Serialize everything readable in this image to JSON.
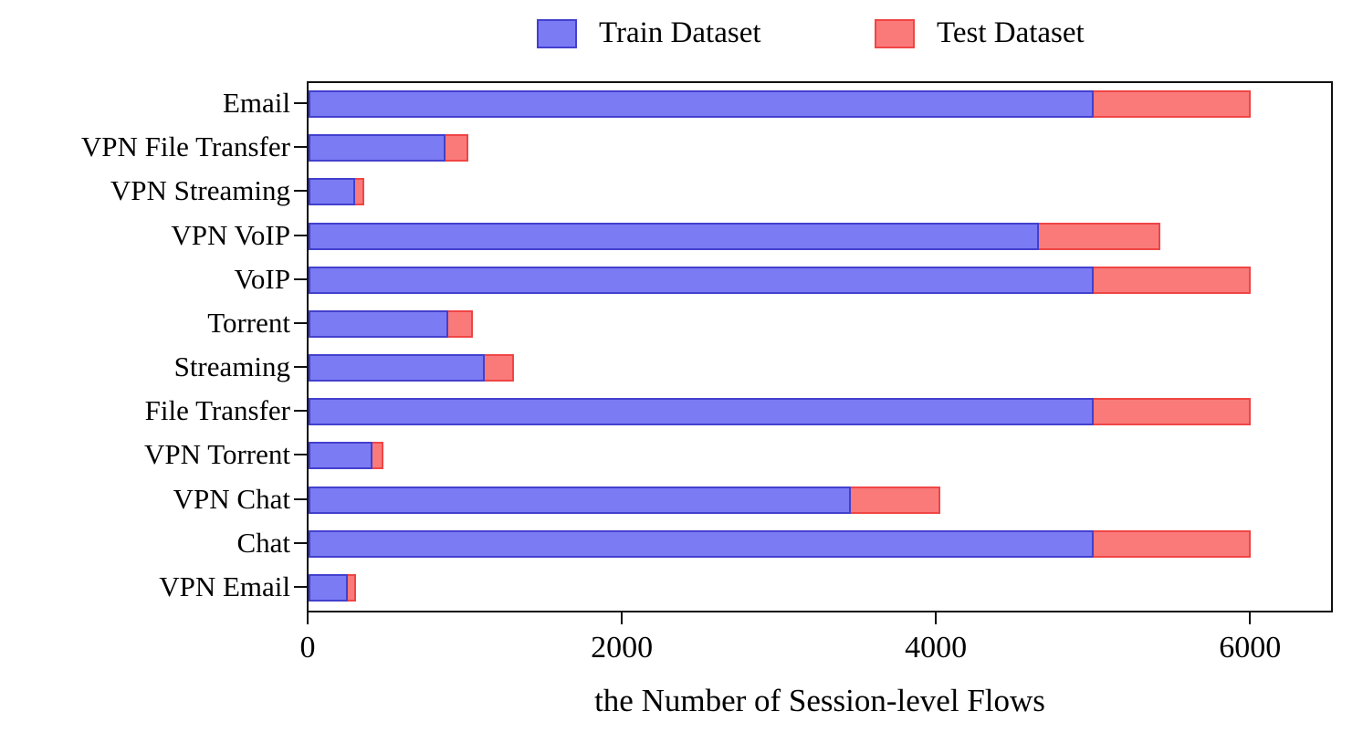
{
  "chart_data": {
    "type": "bar",
    "orientation": "horizontal",
    "stacked": true,
    "title": "",
    "xlabel": "the Number of Session-level Flows",
    "ylabel": "",
    "grid": false,
    "legend_position": "top",
    "xlim": [
      0,
      6510
    ],
    "x_ticks": [
      0,
      2000,
      4000,
      6000
    ],
    "x_tick_labels": [
      "0",
      "2000",
      "4000",
      "6000"
    ],
    "categories": [
      "Email",
      "VPN File Transfer",
      "VPN Streaming",
      "VPN VoIP",
      "VoIP",
      "Torrent",
      "Streaming",
      "File Transfer",
      "VPN Torrent",
      "VPN Chat",
      "Chat",
      "VPN Email"
    ],
    "series": [
      {
        "name": "Train Dataset",
        "fill_color": "#7B7BF4",
        "edge_color": "#4340CE",
        "values": [
          5000,
          870,
          295,
          4650,
          5000,
          890,
          1120,
          5000,
          405,
          3450,
          5000,
          250
        ]
      },
      {
        "name": "Test Dataset",
        "fill_color": "#FA7A7A",
        "edge_color": "#F04545",
        "values": [
          1000,
          145,
          57,
          775,
          1000,
          155,
          185,
          1000,
          72,
          575,
          1000,
          53
        ]
      }
    ],
    "totals": [
      6000,
      1015,
      352,
      5425,
      6000,
      1045,
      1305,
      6000,
      477,
      4025,
      6000,
      303
    ]
  },
  "axis_color": "#111111"
}
